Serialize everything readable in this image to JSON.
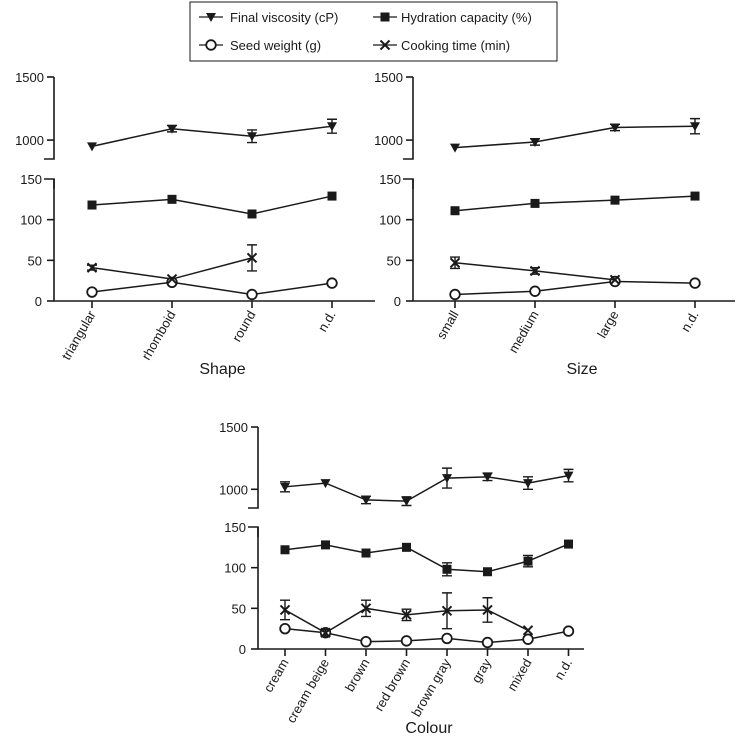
{
  "legend": {
    "items": [
      {
        "label": "Final viscosity (cP)",
        "marker": "triangle-down"
      },
      {
        "label": "Hydration capacity (%)",
        "marker": "square"
      },
      {
        "label": "Seed weight (g)",
        "marker": "circle"
      },
      {
        "label": "Cooking time (min)",
        "marker": "cross"
      }
    ]
  },
  "chart_data": [
    {
      "type": "line",
      "xlabel": "Shape",
      "categories": [
        "triangular",
        "rhomboid",
        "round",
        "n.d."
      ],
      "y_axis_top": {
        "range": [
          850,
          1500
        ],
        "ticks": [
          1000,
          1500
        ]
      },
      "y_axis_bottom": {
        "range": [
          0,
          150
        ],
        "ticks": [
          0,
          50,
          100,
          150
        ]
      },
      "series": [
        {
          "name": "Final viscosity (cP)",
          "marker": "triangle-down",
          "panel": "top",
          "values": [
            950,
            1090,
            1030,
            1110
          ],
          "errors": [
            0,
            25,
            50,
            55
          ]
        },
        {
          "name": "Hydration capacity (%)",
          "marker": "square",
          "panel": "bottom",
          "values": [
            118,
            125,
            107,
            129
          ],
          "errors": [
            0,
            0,
            0,
            0
          ]
        },
        {
          "name": "Seed weight (g)",
          "marker": "circle",
          "panel": "bottom",
          "values": [
            11,
            23,
            8,
            22
          ],
          "errors": [
            0,
            0,
            0,
            0
          ]
        },
        {
          "name": "Cooking time (min)",
          "marker": "cross",
          "panel": "bottom",
          "values": [
            41,
            27,
            53,
            null
          ],
          "errors": [
            3,
            0,
            16,
            0
          ]
        }
      ]
    },
    {
      "type": "line",
      "xlabel": "Size",
      "categories": [
        "small",
        "medium",
        "large",
        "n.d."
      ],
      "y_axis_top": {
        "range": [
          850,
          1500
        ],
        "ticks": [
          1000,
          1500
        ]
      },
      "y_axis_bottom": {
        "range": [
          0,
          150
        ],
        "ticks": [
          0,
          50,
          100,
          150
        ]
      },
      "series": [
        {
          "name": "Final viscosity (cP)",
          "marker": "triangle-down",
          "panel": "top",
          "values": [
            940,
            985,
            1100,
            1110
          ],
          "errors": [
            0,
            25,
            25,
            60
          ]
        },
        {
          "name": "Hydration capacity (%)",
          "marker": "square",
          "panel": "bottom",
          "values": [
            111,
            120,
            124,
            129
          ],
          "errors": [
            0,
            0,
            0,
            0
          ]
        },
        {
          "name": "Seed weight (g)",
          "marker": "circle",
          "panel": "bottom",
          "values": [
            8,
            12,
            24,
            22
          ],
          "errors": [
            0,
            0,
            0,
            0
          ]
        },
        {
          "name": "Cooking time (min)",
          "marker": "cross",
          "panel": "bottom",
          "values": [
            47,
            37,
            26,
            null
          ],
          "errors": [
            7,
            4,
            0,
            0
          ]
        }
      ]
    },
    {
      "type": "line",
      "xlabel": "Colour",
      "categories": [
        "cream",
        "cream beige",
        "brown",
        "red brown",
        "brown gray",
        "gray",
        "mixed",
        "n.d."
      ],
      "y_axis_top": {
        "range": [
          850,
          1500
        ],
        "ticks": [
          1000,
          1500
        ]
      },
      "y_axis_bottom": {
        "range": [
          0,
          150
        ],
        "ticks": [
          0,
          50,
          100,
          150
        ]
      },
      "series": [
        {
          "name": "Final viscosity (cP)",
          "marker": "triangle-down",
          "panel": "top",
          "values": [
            1020,
            1050,
            915,
            905,
            1090,
            1100,
            1050,
            1110
          ],
          "errors": [
            40,
            0,
            30,
            35,
            80,
            30,
            50,
            50
          ]
        },
        {
          "name": "Hydration capacity (%)",
          "marker": "square",
          "panel": "bottom",
          "values": [
            122,
            128,
            118,
            125,
            98,
            95,
            108,
            129
          ],
          "errors": [
            0,
            0,
            0,
            0,
            8,
            0,
            7,
            0
          ]
        },
        {
          "name": "Seed weight (g)",
          "marker": "circle",
          "panel": "bottom",
          "values": [
            25,
            20,
            9,
            10,
            13,
            8,
            12,
            22
          ],
          "errors": [
            0,
            0,
            0,
            0,
            0,
            0,
            0,
            0
          ]
        },
        {
          "name": "Cooking time (min)",
          "marker": "cross",
          "panel": "bottom",
          "values": [
            48,
            20,
            50,
            42,
            47,
            48,
            23,
            null
          ],
          "errors": [
            12,
            4,
            10,
            7,
            22,
            15,
            0,
            0
          ]
        }
      ]
    }
  ]
}
